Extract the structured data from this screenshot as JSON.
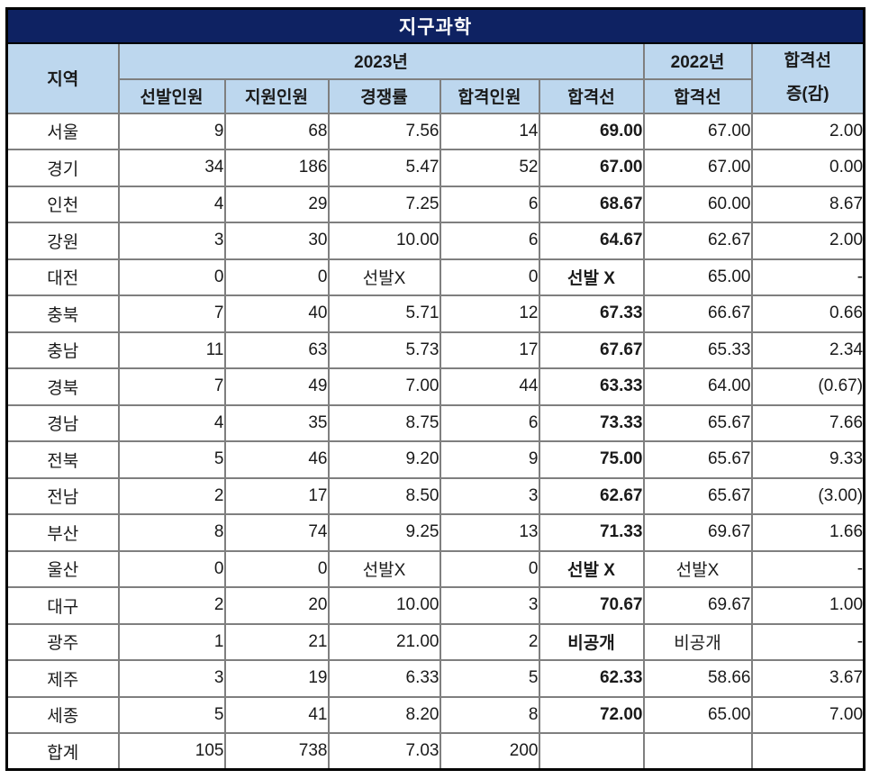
{
  "title": "지구과학",
  "colors": {
    "title_bg": "#0e2262",
    "title_text": "#ffffff",
    "header_bg": "#bdd7ee",
    "cutline_2023_text": "#0a76d8",
    "negative_diff_text": "#f63c3c",
    "grid_line": "#7f7f7f",
    "outer_border": "#000000"
  },
  "header": {
    "region": "지역",
    "year2023": "2023년",
    "year2022": "2022년",
    "sub_2023": [
      "선발인원",
      "지원인원",
      "경쟁률",
      "합격인원",
      "합격선"
    ],
    "cutline2022": "합격선",
    "diff_line1": "합격선",
    "diff_line2": "증(감)"
  },
  "chart_data": {
    "type": "table",
    "title": "지구과학",
    "columns": [
      "지역",
      "2023년 선발인원",
      "2023년 지원인원",
      "2023년 경쟁률",
      "2023년 합격인원",
      "2023년 합격선",
      "2022년 합격선",
      "합격선 증(감)"
    ],
    "rows": [
      [
        "서울",
        "9",
        "68",
        "7.56",
        "14",
        "69.00",
        "67.00",
        "2.00"
      ],
      [
        "경기",
        "34",
        "186",
        "5.47",
        "52",
        "67.00",
        "67.00",
        "0.00"
      ],
      [
        "인천",
        "4",
        "29",
        "7.25",
        "6",
        "68.67",
        "60.00",
        "8.67"
      ],
      [
        "강원",
        "3",
        "30",
        "10.00",
        "6",
        "64.67",
        "62.67",
        "2.00"
      ],
      [
        "대전",
        "0",
        "0",
        "선발X",
        "0",
        "선발 X",
        "65.00",
        "-"
      ],
      [
        "충북",
        "7",
        "40",
        "5.71",
        "12",
        "67.33",
        "66.67",
        "0.66"
      ],
      [
        "충남",
        "11",
        "63",
        "5.73",
        "17",
        "67.67",
        "65.33",
        "2.34"
      ],
      [
        "경북",
        "7",
        "49",
        "7.00",
        "44",
        "63.33",
        "64.00",
        "(0.67)"
      ],
      [
        "경남",
        "4",
        "35",
        "8.75",
        "6",
        "73.33",
        "65.67",
        "7.66"
      ],
      [
        "전북",
        "5",
        "46",
        "9.20",
        "9",
        "75.00",
        "65.67",
        "9.33"
      ],
      [
        "전남",
        "2",
        "17",
        "8.50",
        "3",
        "62.67",
        "65.67",
        "(3.00)"
      ],
      [
        "부산",
        "8",
        "74",
        "9.25",
        "13",
        "71.33",
        "69.67",
        "1.66"
      ],
      [
        "울산",
        "0",
        "0",
        "선발X",
        "0",
        "선발 X",
        "선발X",
        "-"
      ],
      [
        "대구",
        "2",
        "20",
        "10.00",
        "3",
        "70.67",
        "69.67",
        "1.00"
      ],
      [
        "광주",
        "1",
        "21",
        "21.00",
        "2",
        "비공개",
        "비공개",
        "-"
      ],
      [
        "제주",
        "3",
        "19",
        "6.33",
        "5",
        "62.33",
        "58.66",
        "3.67"
      ],
      [
        "세종",
        "5",
        "41",
        "8.20",
        "8",
        "72.00",
        "65.00",
        "7.00"
      ],
      [
        "합계",
        "105",
        "738",
        "7.03",
        "200",
        "",
        "",
        ""
      ]
    ]
  }
}
